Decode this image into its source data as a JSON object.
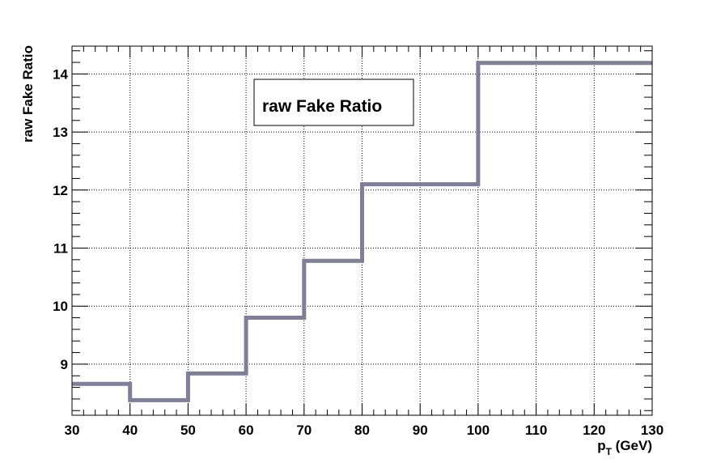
{
  "chart_data": {
    "type": "line",
    "title": "raw Fake Ratio",
    "xlabel_main": "p",
    "xlabel_sub": "T",
    "xlabel_unit": " (GeV)",
    "ylabel": "raw Fake Ratio",
    "xlim": [
      30,
      130
    ],
    "ylim": [
      8.12,
      14.48
    ],
    "grid": true,
    "legend": "none",
    "series_color": "#7f7f99",
    "xticks": [
      "30",
      "40",
      "50",
      "60",
      "70",
      "80",
      "90",
      "100",
      "110",
      "120",
      "130"
    ],
    "yticks": [
      "9",
      "10",
      "11",
      "12",
      "13",
      "14"
    ],
    "bins": [
      {
        "x0": 30,
        "x1": 40,
        "y": 8.66
      },
      {
        "x0": 40,
        "x1": 50,
        "y": 8.38
      },
      {
        "x0": 50,
        "x1": 60,
        "y": 8.84
      },
      {
        "x0": 60,
        "x1": 70,
        "y": 9.8
      },
      {
        "x0": 70,
        "x1": 80,
        "y": 10.78
      },
      {
        "x0": 80,
        "x1": 100,
        "y": 12.1
      },
      {
        "x0": 100,
        "x1": 130,
        "y": 14.19
      }
    ]
  }
}
